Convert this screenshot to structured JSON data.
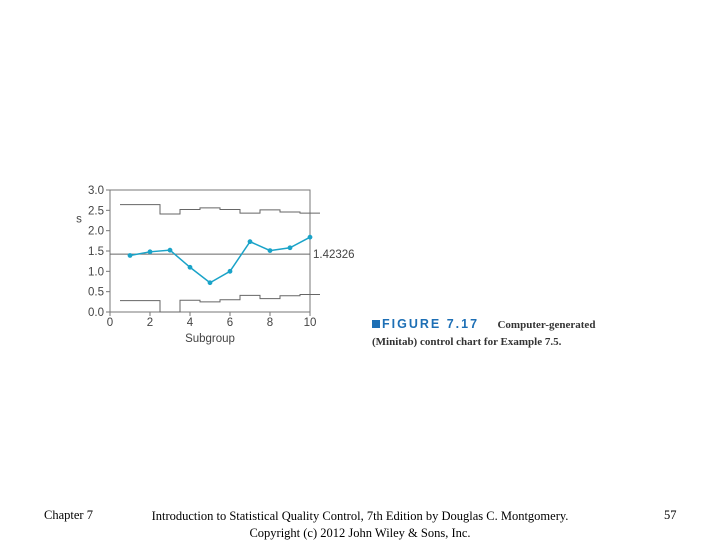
{
  "chart_data": {
    "type": "line",
    "title": "",
    "xlabel": "Subgroup",
    "ylabel": "s",
    "x": [
      1,
      2,
      3,
      4,
      5,
      6,
      7,
      8,
      9,
      10
    ],
    "series": [
      {
        "values": [
          1.39,
          1.48,
          1.52,
          1.1,
          0.72,
          1.0,
          1.73,
          1.51,
          1.58,
          1.84
        ],
        "color": "#1aa3c8"
      }
    ],
    "center_line": {
      "value": 1.42326,
      "label": "1.42326"
    },
    "ucl": [
      2.64,
      2.64,
      2.41,
      2.52,
      2.56,
      2.52,
      2.43,
      2.51,
      2.46,
      2.43
    ],
    "lcl": [
      0.28,
      0.28,
      0.0,
      0.29,
      0.25,
      0.3,
      0.41,
      0.33,
      0.4,
      0.43
    ],
    "xticks": [
      "0",
      "2",
      "4",
      "6",
      "8",
      "10"
    ],
    "yticks": [
      "0.0",
      "0.5",
      "1.0",
      "1.5",
      "2.0",
      "2.5",
      "3.0"
    ],
    "xlim": [
      0,
      10
    ],
    "ylim": [
      0,
      3
    ],
    "grid": false
  },
  "caption": {
    "figure_label": "FIGURE 7.17",
    "line1": "Computer-generated",
    "line2": "(Minitab) control chart for Example 7.5."
  },
  "footer": {
    "left": "Chapter 7",
    "center_line1": "Introduction to Statistical Quality Control, 7th Edition by Douglas C. Montgomery.",
    "center_line2": "Copyright (c) 2012 John Wiley & Sons, Inc.",
    "right": "57"
  }
}
